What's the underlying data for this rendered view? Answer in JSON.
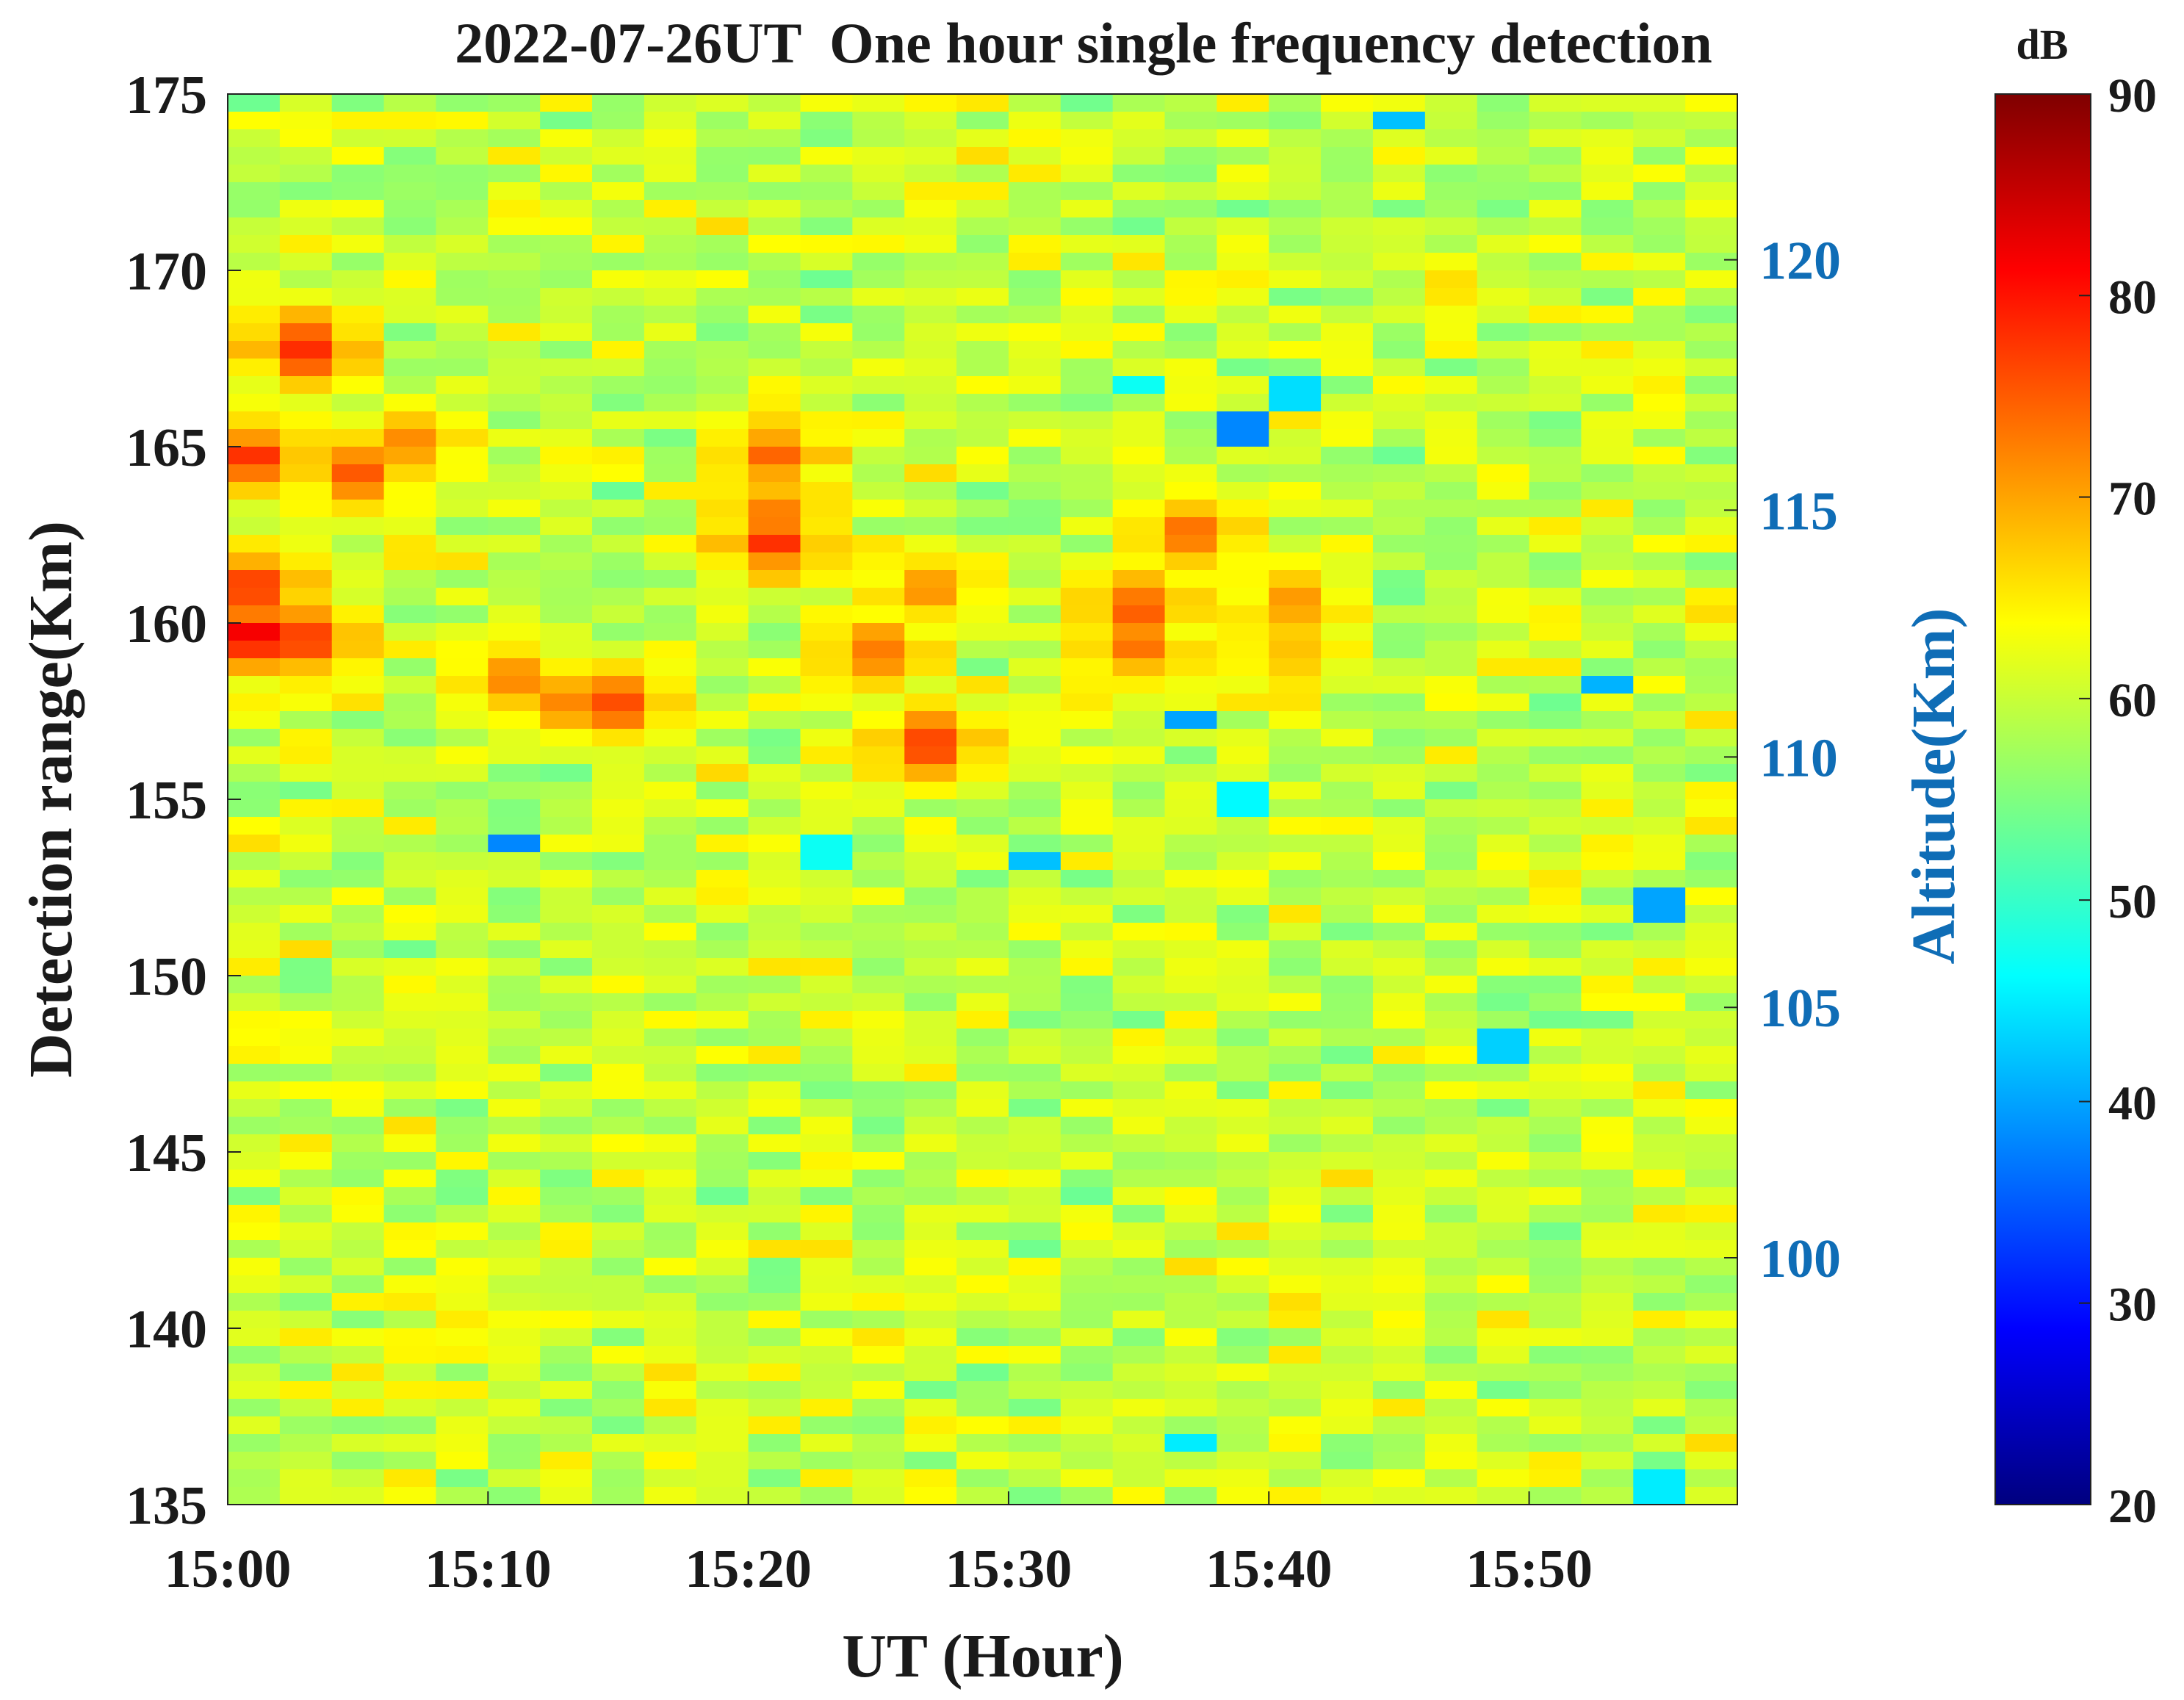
{
  "chart_data": {
    "type": "heatmap",
    "title": "2022-07-26UT  One hour single frequency detection",
    "xlabel": "UT (Hour)",
    "ylabel": "Detection range(Km)",
    "y2label": "Altitude(Km)",
    "colorbar_label": "dB",
    "colormap": "jet",
    "x_range_minutes": [
      0,
      58
    ],
    "x_ticks": [
      {
        "minute": 0,
        "label": "15:00"
      },
      {
        "minute": 10,
        "label": "15:10"
      },
      {
        "minute": 20,
        "label": "15:20"
      },
      {
        "minute": 30,
        "label": "15:30"
      },
      {
        "minute": 40,
        "label": "15:40"
      },
      {
        "minute": 50,
        "label": "15:50"
      }
    ],
    "y_range_km": [
      135,
      175
    ],
    "y_ticks": [
      {
        "value": 175,
        "label": "175"
      },
      {
        "value": 170,
        "label": "170"
      },
      {
        "value": 165,
        "label": "165"
      },
      {
        "value": 160,
        "label": "160"
      },
      {
        "value": 155,
        "label": "155"
      },
      {
        "value": 150,
        "label": "150"
      },
      {
        "value": 145,
        "label": "145"
      },
      {
        "value": 140,
        "label": "140"
      },
      {
        "value": 135,
        "label": "135"
      }
    ],
    "y2_ticks": [
      {
        "range_km": 170.3,
        "label": "120"
      },
      {
        "range_km": 163.2,
        "label": "115"
      },
      {
        "range_km": 156.2,
        "label": "110"
      },
      {
        "range_km": 149.1,
        "label": "105"
      },
      {
        "range_km": 142.0,
        "label": "100"
      }
    ],
    "colorbar_range_db": [
      20,
      90
    ],
    "colorbar_ticks": [
      {
        "value": 90,
        "label": "90"
      },
      {
        "value": 80,
        "label": "80"
      },
      {
        "value": 70,
        "label": "70"
      },
      {
        "value": 60,
        "label": "60"
      },
      {
        "value": 50,
        "label": "50"
      },
      {
        "value": 40,
        "label": "40"
      },
      {
        "value": 30,
        "label": "30"
      },
      {
        "value": 20,
        "label": "20"
      }
    ],
    "grid_columns": 29,
    "grid_rows": 80,
    "baseline_db": 60,
    "hotspots": [
      {
        "col": 0,
        "range_km": 159.6,
        "peak_db": 84
      },
      {
        "col": 1,
        "range_km": 159.5,
        "peak_db": 78
      },
      {
        "col": 0,
        "range_km": 164.7,
        "peak_db": 77
      },
      {
        "col": 1,
        "range_km": 167.8,
        "peak_db": 80
      },
      {
        "col": 2,
        "range_km": 164.2,
        "peak_db": 76
      },
      {
        "col": 3,
        "range_km": 165.0,
        "peak_db": 72
      },
      {
        "col": 0,
        "range_km": 161.0,
        "peak_db": 78
      },
      {
        "col": 5,
        "range_km": 158.4,
        "peak_db": 74
      },
      {
        "col": 6,
        "range_km": 157.8,
        "peak_db": 73
      },
      {
        "col": 7,
        "range_km": 157.7,
        "peak_db": 76
      },
      {
        "col": 10,
        "range_km": 163.2,
        "peak_db": 74
      },
      {
        "col": 10,
        "range_km": 162.3,
        "peak_db": 78
      },
      {
        "col": 10,
        "range_km": 164.8,
        "peak_db": 75
      },
      {
        "col": 12,
        "range_km": 159.2,
        "peak_db": 74
      },
      {
        "col": 13,
        "range_km": 161.0,
        "peak_db": 73
      },
      {
        "col": 13,
        "range_km": 156.5,
        "peak_db": 79
      },
      {
        "col": 17,
        "range_km": 159.3,
        "peak_db": 74
      },
      {
        "col": 17,
        "range_km": 160.4,
        "peak_db": 76
      },
      {
        "col": 18,
        "range_km": 162.6,
        "peak_db": 74
      },
      {
        "col": 20,
        "range_km": 160.5,
        "peak_db": 71
      },
      {
        "col": 20,
        "range_km": 159.4,
        "peak_db": 70
      }
    ],
    "coldspots": [
      {
        "col": 5,
        "range_km": 153.8,
        "db": 38
      },
      {
        "col": 19,
        "range_km": 155.0,
        "db": 46
      },
      {
        "col": 11,
        "range_km": 153.4,
        "db": 47
      },
      {
        "col": 18,
        "range_km": 157.3,
        "db": 40
      },
      {
        "col": 19,
        "range_km": 165.5,
        "db": 38
      },
      {
        "col": 20,
        "range_km": 166.6,
        "db": 44
      },
      {
        "col": 17,
        "range_km": 166.8,
        "db": 47
      },
      {
        "col": 27,
        "range_km": 151.9,
        "db": 40
      },
      {
        "col": 26,
        "range_km": 158.3,
        "db": 41
      },
      {
        "col": 22,
        "range_km": 174.3,
        "db": 42
      },
      {
        "col": 15,
        "range_km": 153.2,
        "db": 42
      },
      {
        "col": 27,
        "range_km": 135.4,
        "db": 45
      },
      {
        "col": 18,
        "range_km": 136.7,
        "db": 45
      },
      {
        "col": 24,
        "range_km": 147.9,
        "db": 43
      }
    ]
  }
}
